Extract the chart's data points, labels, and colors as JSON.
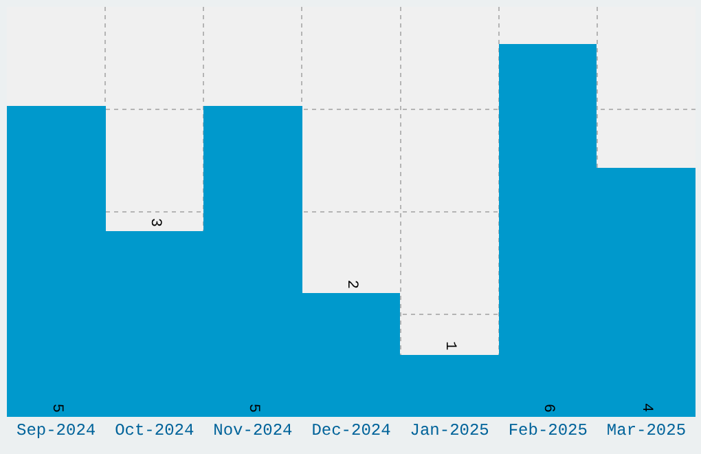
{
  "chart_data": {
    "type": "bar",
    "categories": [
      "Sep-2024",
      "Oct-2024",
      "Nov-2024",
      "Dec-2024",
      "Jan-2025",
      "Feb-2025",
      "Mar-2025"
    ],
    "values": [
      5,
      3,
      5,
      2,
      1,
      6,
      4
    ],
    "color": "#0099cc",
    "ylim": [
      0,
      6.6
    ],
    "tick_labels": "x",
    "grid": true,
    "data_labels": true
  }
}
